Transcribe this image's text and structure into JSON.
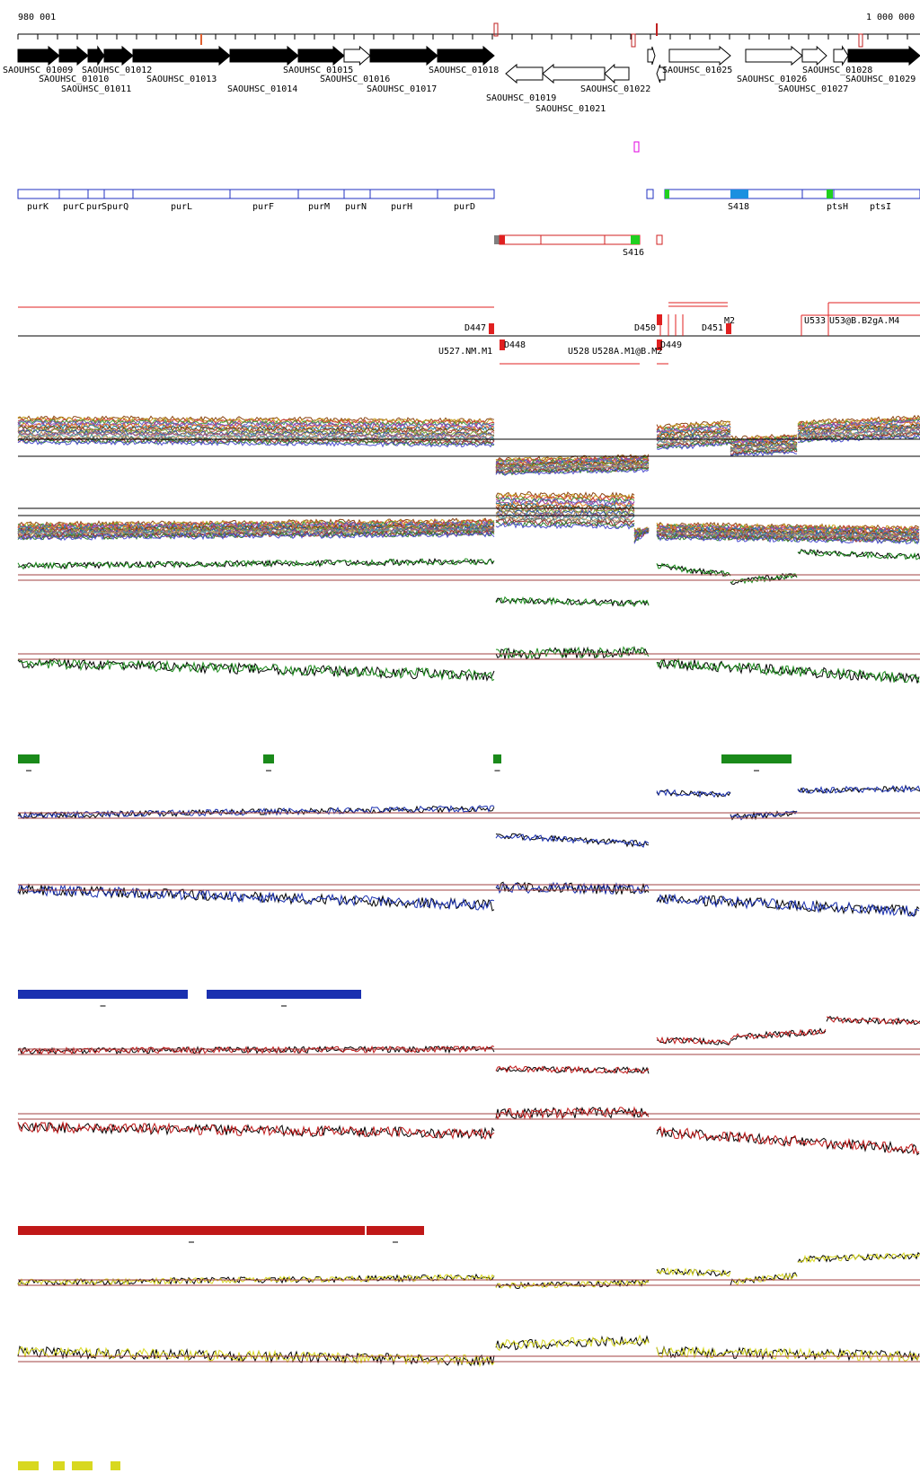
{
  "coords": {
    "start_label": "980 001",
    "end_label": "1 000 000"
  },
  "genes_forward": [
    "SAOUHSC_01009",
    "SAOUHSC_01010",
    "SAOUHSC_01011",
    "SAOUHSC_01012",
    "SAOUHSC_01013",
    "SAOUHSC_01014",
    "SAOUHSC_01015",
    "SAOUHSC_01016",
    "SAOUHSC_01017",
    "SAOUHSC_01018"
  ],
  "genes_reverse": [
    "SAOUHSC_01019",
    "SAOUHSC_01021",
    "SAOUHSC_01022"
  ],
  "genes_right": [
    "SAOUHSC_01025",
    "SAOUHSC_01026",
    "SAOUHSC_01027",
    "SAOUHSC_01028",
    "SAOUHSC_01029"
  ],
  "operon_labels": [
    "purK",
    "purC",
    "pur",
    "SpurQ",
    "purL",
    "purF",
    "purM",
    "purN",
    "purH",
    "purD",
    "S418",
    "ptsH",
    "ptsI"
  ],
  "segment_labels": {
    "s416": "S416"
  },
  "feature_labels": {
    "d447": "D447",
    "d448": "D448",
    "d449": "D449",
    "d450": "D450",
    "d451": "D451",
    "u527": "U527.NM.M1",
    "u528": "U528",
    "u528b": "U528A.M1@B.M2",
    "u533": "U533",
    "u533b": "U53@B.B2gA.M4",
    "cluster": "M2"
  },
  "track_colors": {
    "green": "#1a8a1a",
    "blue": "#1a30b0",
    "red": "#c01818",
    "yellow": "#d8d820",
    "black": "#000000"
  },
  "icons": [
    "forward-gene-arrow",
    "reverse-gene-arrow",
    "segment-box"
  ]
}
